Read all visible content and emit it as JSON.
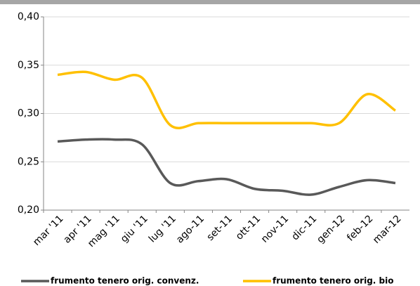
{
  "chart_data": {
    "type": "line",
    "categories": [
      "mar '11",
      "apr '11",
      "mag '11",
      "giu '11",
      "lug '11",
      "ago-11",
      "set-11",
      "ott-11",
      "nov-11",
      "dic-11",
      "gen-12",
      "feb-12",
      "mar-12"
    ],
    "series": [
      {
        "name": "frumento tenero orig. convenz.",
        "color": "#595959",
        "values": [
          0.271,
          0.273,
          0.273,
          0.268,
          0.228,
          0.23,
          0.232,
          0.222,
          0.22,
          0.216,
          0.224,
          0.231,
          0.228
        ]
      },
      {
        "name": "frumento tenero orig. bio",
        "color": "#ffc000",
        "values": [
          0.34,
          0.343,
          0.335,
          0.337,
          0.288,
          0.29,
          0.29,
          0.29,
          0.29,
          0.29,
          0.29,
          0.32,
          0.303
        ]
      }
    ],
    "ylim": [
      0.2,
      0.4
    ],
    "yticks": [
      {
        "value": 0.2,
        "label": "0,20"
      },
      {
        "value": 0.25,
        "label": "0,25"
      },
      {
        "value": 0.3,
        "label": "0,30"
      },
      {
        "value": 0.35,
        "label": "0,35"
      },
      {
        "value": 0.4,
        "label": "0,40"
      }
    ],
    "grid": true
  }
}
